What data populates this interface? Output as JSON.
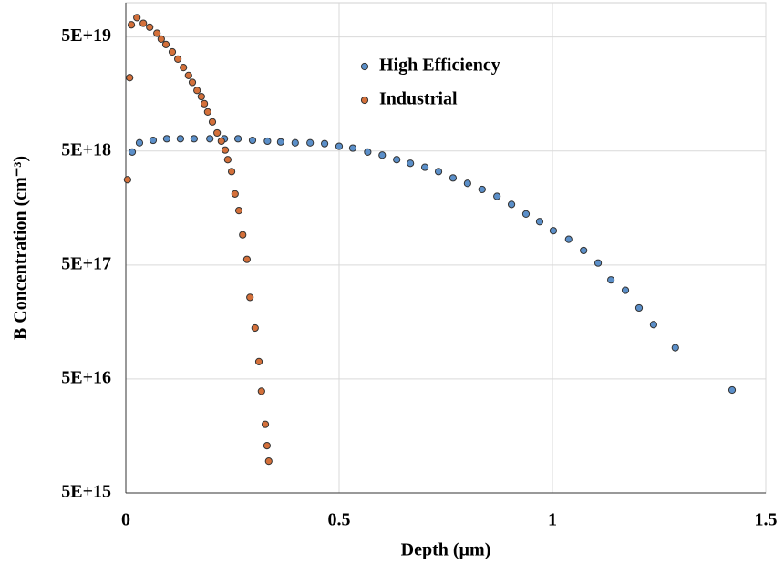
{
  "chart_data": {
    "type": "scatter",
    "xlabel": "Depth (µm)",
    "ylabel": "B Concentration (cm⁻³)",
    "xlim": [
      0,
      1.5
    ],
    "xticks": [
      0,
      0.5,
      1,
      1.5
    ],
    "ylim": [
      5000000000000000.0,
      1e+20
    ],
    "yscale": "log",
    "yticks": [
      {
        "value": 5000000000000000.0,
        "label": "5E+15"
      },
      {
        "value": 5e+16,
        "label": "5E+16"
      },
      {
        "value": 5e+17,
        "label": "5E+17"
      },
      {
        "value": 5e+18,
        "label": "5E+18"
      },
      {
        "value": 5e+19,
        "label": "5E+19"
      }
    ],
    "grid": true,
    "series": [
      {
        "name": "High Efficiency",
        "color": "#5b8fc9",
        "x": [
          0.015,
          0.032,
          0.064,
          0.096,
          0.128,
          0.16,
          0.197,
          0.231,
          0.263,
          0.297,
          0.332,
          0.363,
          0.397,
          0.432,
          0.466,
          0.5,
          0.532,
          0.567,
          0.601,
          0.635,
          0.667,
          0.701,
          0.733,
          0.767,
          0.801,
          0.835,
          0.87,
          0.904,
          0.938,
          0.97,
          1.002,
          1.038,
          1.073,
          1.107,
          1.137,
          1.171,
          1.203,
          1.237,
          1.288,
          1.421
        ],
        "values": [
          4.9e+18,
          5.9e+18,
          6.2e+18,
          6.4e+18,
          6.4e+18,
          6.4e+18,
          6.4e+18,
          6.4e+18,
          6.4e+18,
          6.2e+18,
          6.1e+18,
          6e+18,
          5.9e+18,
          5.9e+18,
          5.8e+18,
          5.5e+18,
          5.3e+18,
          4.9e+18,
          4.6e+18,
          4.2e+18,
          3.9e+18,
          3.6e+18,
          3.3e+18,
          2.9e+18,
          2.6e+18,
          2.3e+18,
          2e+18,
          1.7e+18,
          1.4e+18,
          1.2e+18,
          1e+18,
          8.4e+17,
          6.7e+17,
          5.2e+17,
          3.7e+17,
          3e+17,
          2.1e+17,
          1.5e+17,
          9.4e+16,
          4e+16
        ]
      },
      {
        "name": "Industrial",
        "color": "#d4703a",
        "x": [
          0.004,
          0.009,
          0.013,
          0.026,
          0.041,
          0.056,
          0.073,
          0.083,
          0.094,
          0.109,
          0.122,
          0.135,
          0.147,
          0.156,
          0.167,
          0.177,
          0.184,
          0.192,
          0.203,
          0.214,
          0.224,
          0.233,
          0.239,
          0.248,
          0.256,
          0.265,
          0.274,
          0.284,
          0.291,
          0.303,
          0.312,
          0.318,
          0.327,
          0.331,
          0.335
        ],
        "values": [
          2.8e+18,
          2.2e+19,
          6.4e+19,
          7.4e+19,
          6.6e+19,
          6.1e+19,
          5.4e+19,
          4.8e+19,
          4.3e+19,
          3.7e+19,
          3.2e+19,
          2.7e+19,
          2.3e+19,
          2e+19,
          1.7e+19,
          1.5e+19,
          1.3e+19,
          1.1e+19,
          9e+18,
          7.2e+18,
          6.1e+18,
          5.1e+18,
          4.2e+18,
          3.3e+18,
          2.1e+18,
          1.5e+18,
          9.2e+17,
          5.6e+17,
          2.6e+17,
          1.4e+17,
          7.1e+16,
          3.9e+16,
          2e+16,
          1.3e+16,
          9500000000000000.0
        ]
      }
    ]
  }
}
